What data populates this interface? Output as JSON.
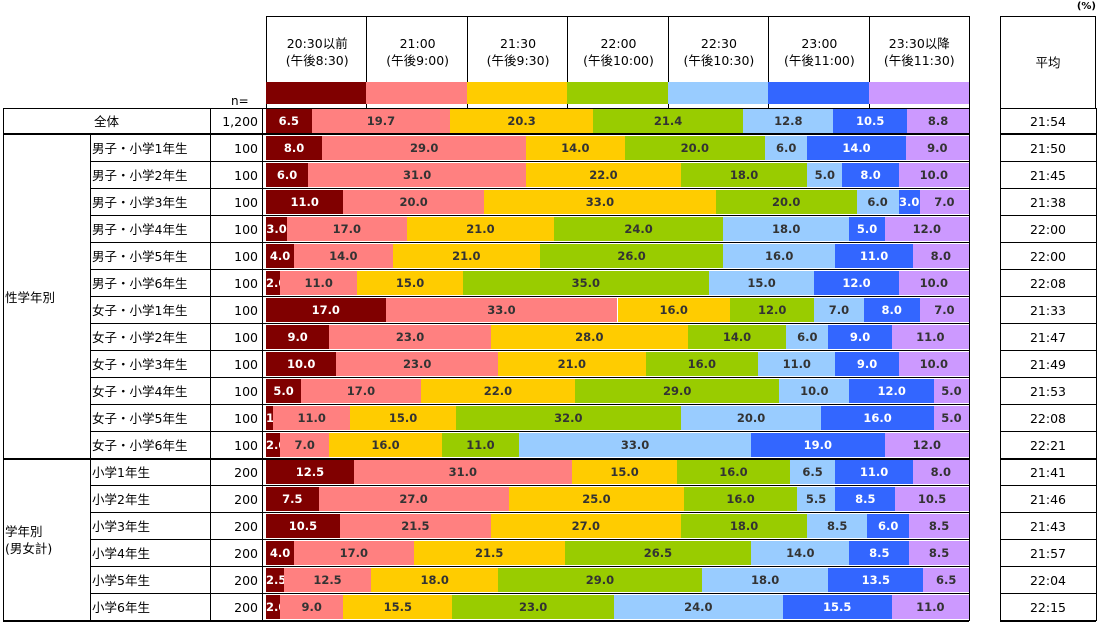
{
  "chart_data": {
    "type": "bar",
    "stacked": true,
    "orientation": "horizontal",
    "unit_label": "(%)",
    "n_label": "n=",
    "average_header": "平均",
    "categories_header": [
      {
        "line1": "20:30以前",
        "line2": "(午後8:30)",
        "color": "#800000",
        "text": "#fff"
      },
      {
        "line1": "21:00",
        "line2": "(午後9:00)",
        "color": "#ff8080",
        "text": "#333"
      },
      {
        "line1": "21:30",
        "line2": "(午後9:30)",
        "color": "#ffcc00",
        "text": "#333"
      },
      {
        "line1": "22:00",
        "line2": "(午後10:00)",
        "color": "#99cc00",
        "text": "#333"
      },
      {
        "line1": "22:30",
        "line2": "(午後10:30)",
        "color": "#99ccff",
        "text": "#333"
      },
      {
        "line1": "23:00",
        "line2": "(午後11:00)",
        "color": "#3366ff",
        "text": "#fff"
      },
      {
        "line1": "23:30以降",
        "line2": "(午後11:30)",
        "color": "#cc99ff",
        "text": "#333"
      }
    ],
    "groups": [
      {
        "label": "",
        "rows": [
          {
            "label": "全体",
            "n": "1,200",
            "values": [
              6.5,
              19.7,
              20.3,
              21.4,
              12.8,
              10.5,
              8.8
            ],
            "labels": [
              "6.5",
              "19.7",
              "20.3",
              "21.4",
              "12.8",
              "10.5",
              "8.8"
            ],
            "avg": "21:54"
          }
        ]
      },
      {
        "label": "性学年別",
        "rows": [
          {
            "label": "男子・小学1年生",
            "n": "100",
            "values": [
              8,
              29,
              14,
              20,
              6,
              14,
              9
            ],
            "avg": "21:50"
          },
          {
            "label": "男子・小学2年生",
            "n": "100",
            "values": [
              6,
              31,
              22,
              18,
              5,
              8,
              10
            ],
            "avg": "21:45"
          },
          {
            "label": "男子・小学3年生",
            "n": "100",
            "values": [
              11,
              20,
              33,
              20,
              6,
              3,
              7
            ],
            "avg": "21:38"
          },
          {
            "label": "男子・小学4年生",
            "n": "100",
            "values": [
              3,
              17,
              21,
              24,
              18,
              5,
              12
            ],
            "avg": "22:00"
          },
          {
            "label": "男子・小学5年生",
            "n": "100",
            "values": [
              4,
              14,
              21,
              26,
              16,
              11,
              8
            ],
            "avg": "22:00"
          },
          {
            "label": "男子・小学6年生",
            "n": "100",
            "values": [
              2,
              11,
              15,
              35,
              15,
              12,
              10
            ],
            "avg": "22:08"
          },
          {
            "label": "女子・小学1年生",
            "n": "100",
            "values": [
              17,
              33,
              16,
              12,
              7,
              8,
              7
            ],
            "avg": "21:33"
          },
          {
            "label": "女子・小学2年生",
            "n": "100",
            "values": [
              9,
              23,
              28,
              14,
              6,
              9,
              11
            ],
            "avg": "21:47"
          },
          {
            "label": "女子・小学3年生",
            "n": "100",
            "values": [
              10,
              23,
              21,
              16,
              11,
              9,
              10
            ],
            "avg": "21:49"
          },
          {
            "label": "女子・小学4年生",
            "n": "100",
            "values": [
              5,
              17,
              22,
              29,
              10,
              12,
              5
            ],
            "avg": "21:53"
          },
          {
            "label": "女子・小学5年生",
            "n": "100",
            "values": [
              1,
              11,
              15,
              32,
              20,
              16,
              5
            ],
            "avg": "22:08"
          },
          {
            "label": "女子・小学6年生",
            "n": "100",
            "values": [
              2,
              7,
              16,
              11,
              33,
              19,
              12
            ],
            "avg": "22:21"
          }
        ]
      },
      {
        "label": "学年別\n(男女計)",
        "rows": [
          {
            "label": "小学1年生",
            "n": "200",
            "values": [
              12.5,
              31,
              15,
              16,
              6.5,
              11,
              8
            ],
            "avg": "21:41"
          },
          {
            "label": "小学2年生",
            "n": "200",
            "values": [
              7.5,
              27,
              25,
              16,
              5.5,
              8.5,
              10.5
            ],
            "avg": "21:46"
          },
          {
            "label": "小学3年生",
            "n": "200",
            "values": [
              10.5,
              21.5,
              27,
              18,
              8.5,
              6,
              8.5
            ],
            "avg": "21:43"
          },
          {
            "label": "小学4年生",
            "n": "200",
            "values": [
              4,
              17,
              21.5,
              26.5,
              14,
              8.5,
              8.5
            ],
            "avg": "21:57"
          },
          {
            "label": "小学5年生",
            "n": "200",
            "values": [
              2.5,
              12.5,
              18,
              29,
              18,
              13.5,
              6.5
            ],
            "avg": "22:04"
          },
          {
            "label": "小学6年生",
            "n": "200",
            "values": [
              2,
              9,
              15.5,
              23,
              24,
              15.5,
              11
            ],
            "avg": "22:15"
          }
        ]
      }
    ]
  }
}
